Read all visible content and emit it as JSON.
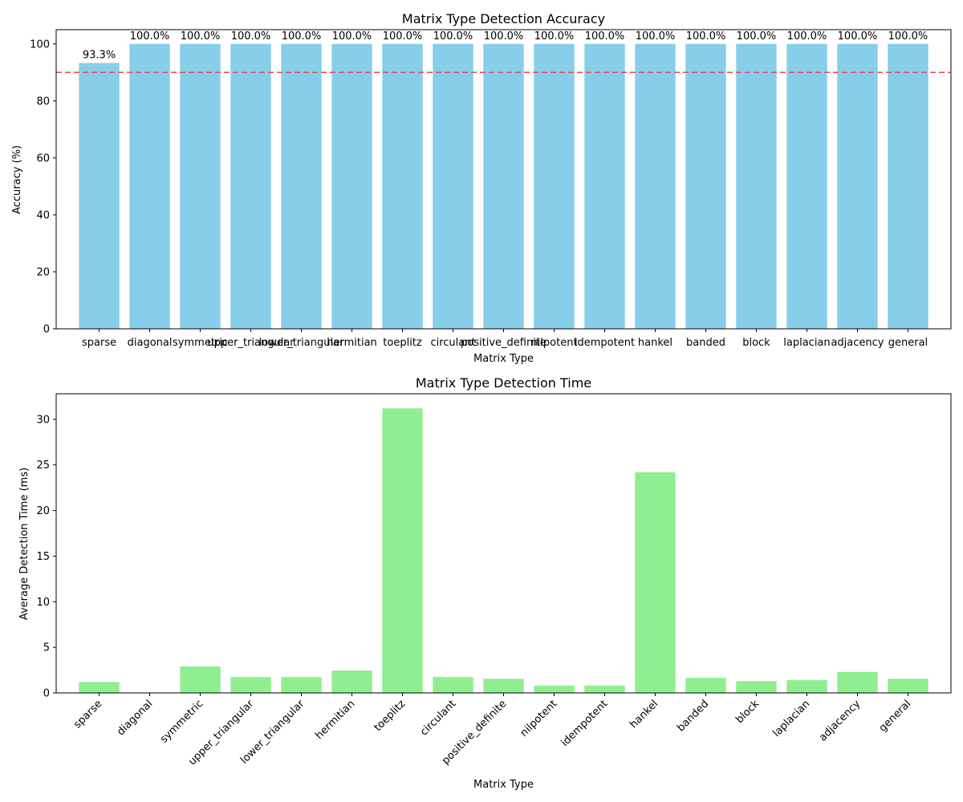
{
  "chart_data": [
    {
      "type": "bar",
      "title": "Matrix Type Detection Accuracy",
      "xlabel": "Matrix Type",
      "ylabel": "Accuracy (%)",
      "ylim": [
        0,
        105
      ],
      "yticks": [
        0,
        20,
        40,
        60,
        80,
        100
      ],
      "bar_color": "#87CEEB",
      "reference_line": {
        "value": 90,
        "color": "#E64B4B",
        "style": "dashed"
      },
      "categories": [
        "sparse",
        "diagonal",
        "symmetric",
        "upper_triangular",
        "lower_triangular",
        "hermitian",
        "toeplitz",
        "circulant",
        "positive_definite",
        "nilpotent",
        "idempotent",
        "hankel",
        "banded",
        "block",
        "laplacian",
        "adjacency",
        "general"
      ],
      "values": [
        93.3,
        100,
        100,
        100,
        100,
        100,
        100,
        100,
        100,
        100,
        100,
        100,
        100,
        100,
        100,
        100,
        100
      ],
      "data_labels": [
        "93.3%",
        "100.0%",
        "100.0%",
        "100.0%",
        "100.0%",
        "100.0%",
        "100.0%",
        "100.0%",
        "100.0%",
        "100.0%",
        "100.0%",
        "100.0%",
        "100.0%",
        "100.0%",
        "100.0%",
        "100.0%",
        "100.0%"
      ],
      "grid": false
    },
    {
      "type": "bar",
      "title": "Matrix Type Detection Time",
      "xlabel": "Matrix Type",
      "ylabel": "Average Detection Time (ms)",
      "ylim": [
        0,
        32.8
      ],
      "yticks": [
        0,
        5,
        10,
        15,
        20,
        25,
        30
      ],
      "bar_color": "#90EE90",
      "categories": [
        "sparse",
        "diagonal",
        "symmetric",
        "upper_triangular",
        "lower_triangular",
        "hermitian",
        "toeplitz",
        "circulant",
        "positive_definite",
        "nilpotent",
        "idempotent",
        "hankel",
        "banded",
        "block",
        "laplacian",
        "adjacency",
        "general"
      ],
      "values": [
        1.2,
        0.05,
        2.9,
        1.75,
        1.75,
        2.45,
        31.2,
        1.75,
        1.55,
        0.8,
        0.8,
        24.2,
        1.65,
        1.3,
        1.4,
        2.3,
        1.55
      ],
      "x_tick_rotation": 45,
      "grid": false
    }
  ]
}
